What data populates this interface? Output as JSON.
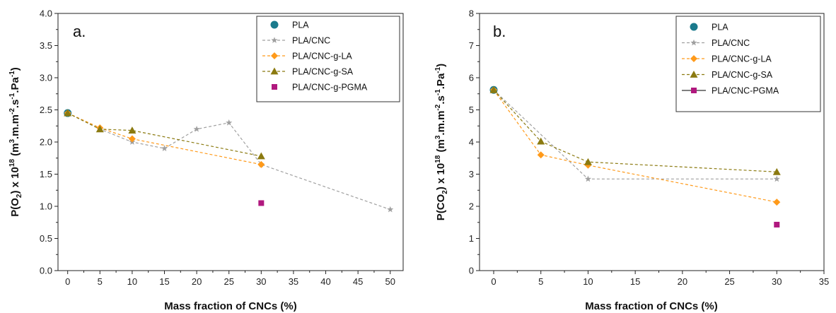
{
  "chart_data": [
    {
      "type": "line",
      "panel_label": "a.",
      "xlabel": "Mass fraction of CNCs (%)",
      "ylabel_parts": {
        "pre": "P(O",
        "sub1": "2",
        "mid": ") x 10",
        "sup1": "18",
        "unit_pre": " (m",
        "sup2": "3",
        "unit_mid1": ".m.m",
        "sup3": "-2",
        "unit_mid2": ".s",
        "sup4": "-1",
        "unit_mid3": ".Pa",
        "sup5": "-1",
        "unit_post": ")"
      },
      "xlim": [
        -1.5,
        52
      ],
      "ylim": [
        0,
        4.0
      ],
      "xticks": [
        0,
        5,
        10,
        15,
        20,
        25,
        30,
        35,
        40,
        45,
        50
      ],
      "yticks": [
        0.0,
        0.5,
        1.0,
        1.5,
        2.0,
        2.5,
        3.0,
        3.5,
        4.0
      ],
      "ytick_decimals": 1,
      "grid": false,
      "legend_position": "top-right",
      "series": [
        {
          "name": "PLA",
          "color": "#1a7a8c",
          "marker": "circle",
          "line": false,
          "x": [
            0
          ],
          "y": [
            2.45
          ]
        },
        {
          "name": "PLA/CNC",
          "color": "#a0a0a0",
          "marker": "star",
          "line": true,
          "x": [
            0,
            5,
            10,
            15,
            20,
            25,
            30,
            50
          ],
          "y": [
            2.45,
            2.2,
            2.0,
            1.9,
            2.2,
            2.3,
            1.65,
            0.95
          ]
        },
        {
          "name": "PLA/CNC-g-LA",
          "color": "#ff9a1a",
          "marker": "diamond",
          "line": true,
          "x": [
            0,
            5,
            10,
            30
          ],
          "y": [
            2.45,
            2.22,
            2.05,
            1.65
          ]
        },
        {
          "name": "PLA/CNC-g-SA",
          "color": "#8b7a10",
          "marker": "triangle",
          "line": true,
          "x": [
            0,
            5,
            10,
            30
          ],
          "y": [
            2.45,
            2.2,
            2.18,
            1.78
          ]
        },
        {
          "name": "PLA/CNC-g-PGMA",
          "color": "#b0187e",
          "marker": "square",
          "line": false,
          "x": [
            30
          ],
          "y": [
            1.05
          ]
        }
      ]
    },
    {
      "type": "line",
      "panel_label": "b.",
      "xlabel": "Mass fraction of CNCs (%)",
      "ylabel_parts": {
        "pre": "P(CO",
        "sub1": "2",
        "mid": ") x 10",
        "sup1": "18",
        "unit_pre": " (m",
        "sup2": "3",
        "unit_mid1": ".m.m",
        "sup3": "-2",
        "unit_mid2": ".s",
        "sup4": "-1",
        "unit_mid3": ".Pa",
        "sup5": "-1",
        "unit_post": ")"
      },
      "xlim": [
        -1.5,
        35
      ],
      "ylim": [
        0,
        8
      ],
      "xticks": [
        0,
        5,
        10,
        15,
        20,
        25,
        30,
        35
      ],
      "yticks": [
        0,
        1,
        2,
        3,
        4,
        5,
        6,
        7,
        8
      ],
      "ytick_decimals": 0,
      "grid": false,
      "legend_position": "top-right",
      "series": [
        {
          "name": "PLA",
          "color": "#1a7a8c",
          "marker": "circle",
          "line": false,
          "x": [
            0
          ],
          "y": [
            5.62
          ]
        },
        {
          "name": "PLA/CNC",
          "color": "#a0a0a0",
          "marker": "star",
          "line": true,
          "x": [
            0,
            10,
            30
          ],
          "y": [
            5.62,
            2.85,
            2.85
          ]
        },
        {
          "name": "PLA/CNC-g-LA",
          "color": "#ff9a1a",
          "marker": "diamond",
          "line": true,
          "x": [
            0,
            5,
            10,
            30
          ],
          "y": [
            5.62,
            3.6,
            3.28,
            2.13
          ]
        },
        {
          "name": "PLA/CNC-g-SA",
          "color": "#8b7a10",
          "marker": "triangle",
          "line": true,
          "x": [
            0,
            5,
            10,
            30
          ],
          "y": [
            5.62,
            4.02,
            3.38,
            3.07
          ]
        },
        {
          "name": "PLA/CNC-PGMA",
          "color": "#b0187e",
          "marker": "square",
          "line": false,
          "legend_line": true,
          "x": [
            30
          ],
          "y": [
            1.43
          ]
        }
      ]
    }
  ]
}
